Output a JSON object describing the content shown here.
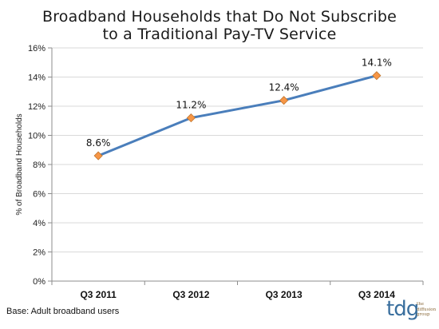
{
  "title_line1": "Broadband Households that Do Not Subscribe",
  "title_line2": "to a Traditional Pay-TV Service",
  "footnote": "Base: Adult broadband users",
  "logo": {
    "mark": "tdg",
    "sub1": "the",
    "sub2": "diffusion",
    "sub3": "group"
  },
  "colors": {
    "line": "#4a7ebb",
    "marker": "#f79646",
    "grid": "#d9d9d9",
    "axis": "#8c8c8c"
  },
  "chart_data": {
    "type": "line",
    "title": "Broadband Households that Do Not Subscribe to a Traditional Pay-TV Service",
    "xlabel": "",
    "ylabel": "% of Broadband Households",
    "categories": [
      "Q3 2011",
      "Q3 2012",
      "Q3 2013",
      "Q3 2014"
    ],
    "values": [
      8.6,
      11.2,
      12.4,
      14.1
    ],
    "data_labels": [
      "8.6%",
      "11.2%",
      "12.4%",
      "14.1%"
    ],
    "ylim": [
      0,
      16
    ],
    "yticks": [
      0,
      2,
      4,
      6,
      8,
      10,
      12,
      14,
      16
    ],
    "ytick_labels": [
      "0%",
      "2%",
      "4%",
      "6%",
      "8%",
      "10%",
      "12%",
      "14%",
      "16%"
    ],
    "grid": true,
    "legend": "none"
  }
}
